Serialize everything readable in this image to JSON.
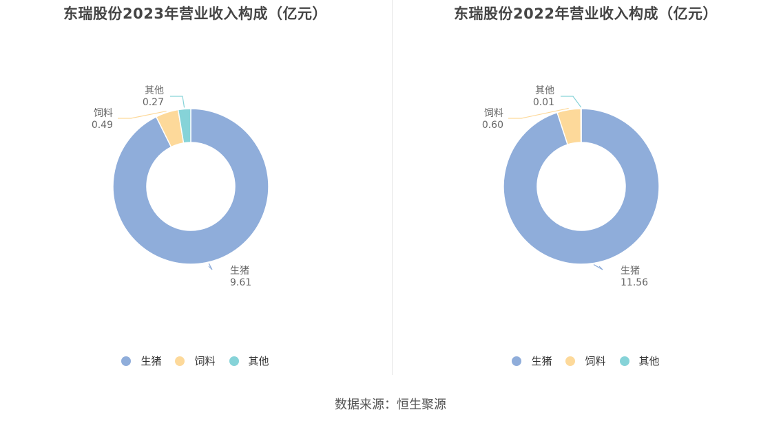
{
  "colors": {
    "生猪": "#8fadda",
    "饲料": "#fdd99a",
    "其他": "#86d3d8"
  },
  "footer": "数据来源：恒生聚源",
  "chart_data": [
    {
      "type": "pie",
      "title": "东瑞股份2023年营业收入构成（亿元）",
      "categories": [
        "生猪",
        "饲料",
        "其他"
      ],
      "values": [
        9.61,
        0.49,
        0.27
      ],
      "value_labels": [
        "9.61",
        "0.49",
        "0.27"
      ],
      "legend": "bottom"
    },
    {
      "type": "pie",
      "title": "东瑞股份2022年营业收入构成（亿元）",
      "categories": [
        "生猪",
        "饲料",
        "其他"
      ],
      "values": [
        11.56,
        0.6,
        0.01
      ],
      "value_labels": [
        "11.56",
        "0.60",
        "0.01"
      ],
      "legend": "bottom"
    }
  ]
}
